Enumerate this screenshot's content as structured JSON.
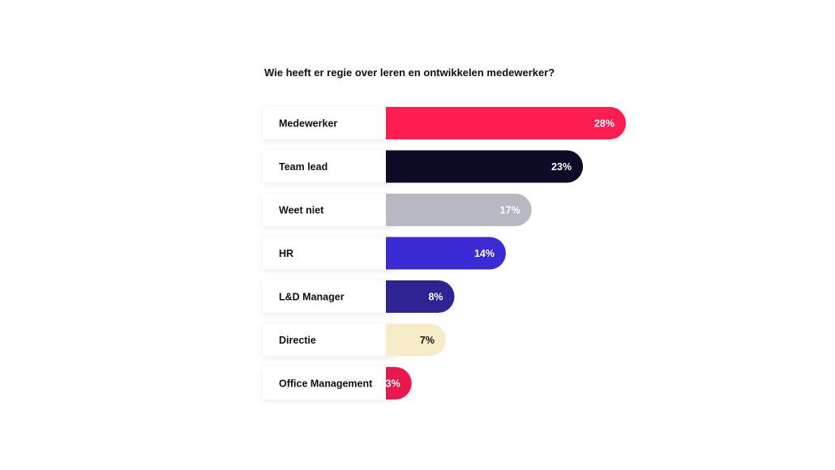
{
  "chart_data": {
    "type": "bar",
    "orientation": "horizontal",
    "title": "Wie heeft er regie over leren en ontwikkelen medewerker?",
    "categories": [
      "Medewerker",
      "Team lead",
      "Weet niet",
      "HR",
      "L&D Manager",
      "Directie",
      "Office Management"
    ],
    "values": [
      28,
      23,
      17,
      14,
      8,
      7,
      3
    ],
    "value_labels": [
      "28%",
      "23%",
      "17%",
      "14%",
      "8%",
      "7%",
      "3%"
    ],
    "unit": "%",
    "bar_colors": [
      "#fd1d51",
      "#0e0b26",
      "#b8b8c2",
      "#3b2bd4",
      "#2e2493",
      "#f7ecc8",
      "#e8174d"
    ],
    "value_label_colors": [
      "#ffffff",
      "#ffffff",
      "#ffffff",
      "#ffffff",
      "#ffffff",
      "#111111",
      "#ffffff"
    ],
    "grid": false,
    "legend": "none"
  }
}
